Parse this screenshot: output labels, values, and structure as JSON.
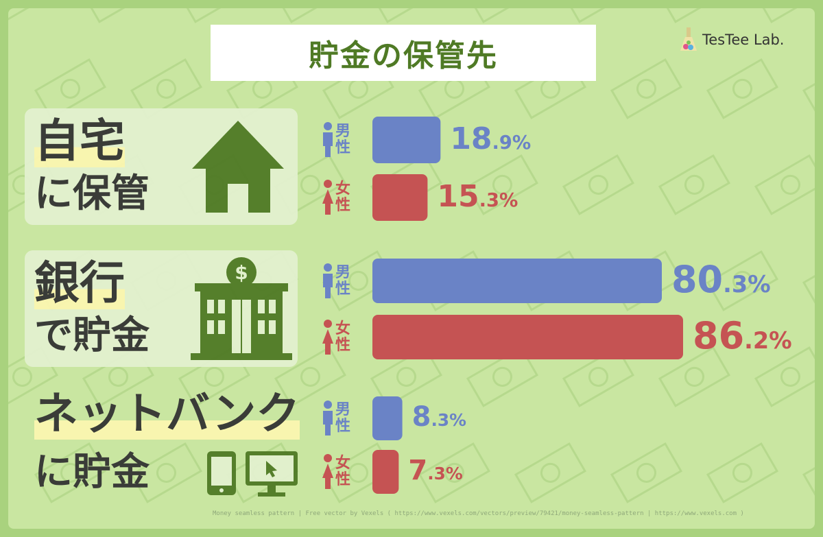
{
  "title": "貯金の保管先",
  "logo": {
    "text": "TesTee Lab."
  },
  "colors": {
    "male": "#6a83c6",
    "female": "#c55353",
    "accent": "#4f7a25",
    "text": "#333333"
  },
  "chart_data": {
    "type": "bar",
    "orientation": "horizontal",
    "title": "貯金の保管先",
    "unit": "%",
    "categories": [
      {
        "label_line1": "自宅",
        "label_line2": "に保管",
        "icon": "house-icon"
      },
      {
        "label_line1": "銀行",
        "label_line2": "で貯金",
        "icon": "bank-icon"
      },
      {
        "label_line1": "ネットバンク",
        "label_line2": "に貯金",
        "icon": "devices-icon"
      }
    ],
    "series": [
      {
        "name": "男性",
        "color": "#6a83c6",
        "values": [
          18.9,
          80.3,
          8.3
        ]
      },
      {
        "name": "女性",
        "color": "#c55353",
        "values": [
          15.3,
          86.2,
          7.3
        ]
      }
    ]
  },
  "credit": "Money seamless pattern | Free vector by Vexels ( https://www.vexels.com/vectors/preview/79421/money-seamless-pattern | https://www.vexels.com )"
}
